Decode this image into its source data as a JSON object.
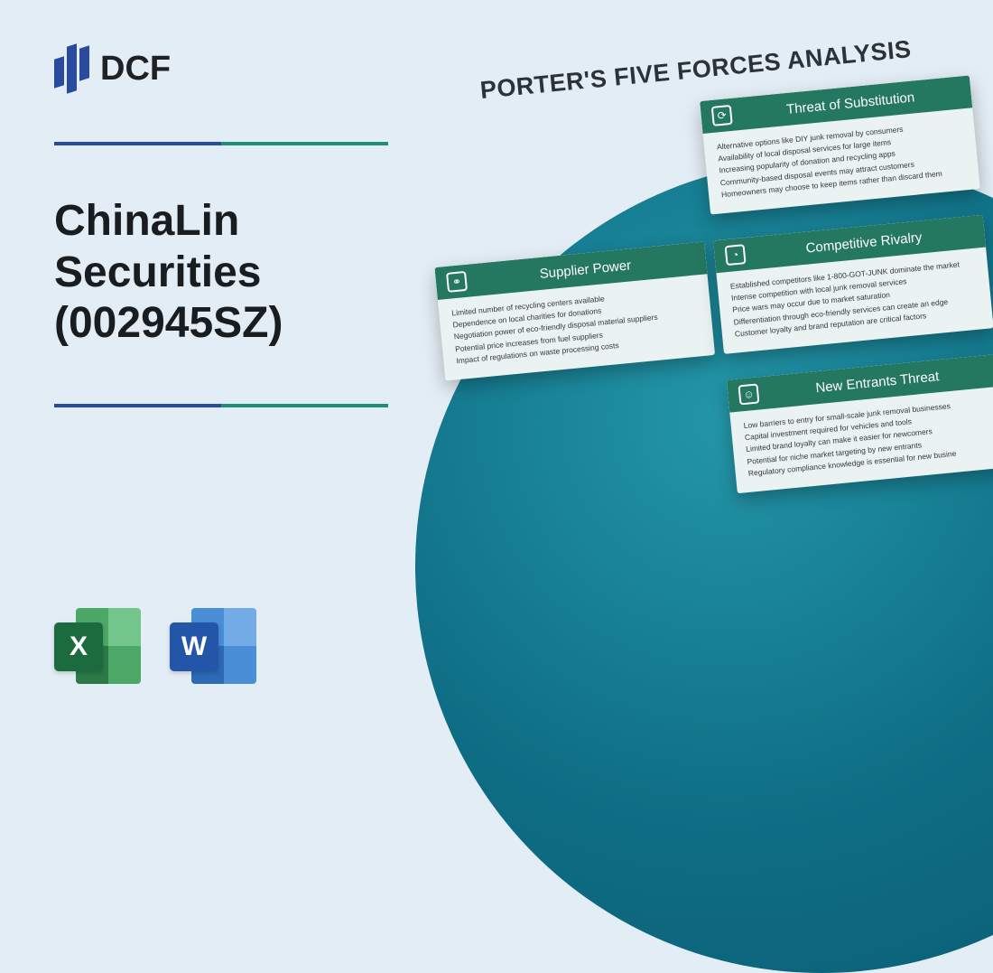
{
  "logo": {
    "text": "DCF"
  },
  "title": "ChinaLin\nSecurities\n(002945SZ)",
  "analysis_heading": "PORTER'S FIVE FORCES ANALYSIS",
  "file_icons": {
    "excel_letter": "X",
    "word_letter": "W"
  },
  "cards": {
    "substitution": {
      "title": "Threat of Substitution",
      "lines": [
        "Alternative options like DIY junk removal by consumers",
        "Availability of local disposal services for large items",
        "Increasing popularity of donation and recycling apps",
        "Community-based disposal events may attract customers",
        "Homeowners may choose to keep items rather than discard them"
      ]
    },
    "rivalry": {
      "title": "Competitive Rivalry",
      "lines": [
        "Established competitors like 1-800-GOT-JUNK dominate the market",
        "Intense competition with local junk removal services",
        "Price wars may occur due to market saturation",
        "Differentiation through eco-friendly services can create an edge",
        "Customer loyalty and brand reputation are critical factors"
      ]
    },
    "entrants": {
      "title": "New Entrants Threat",
      "lines": [
        "Low barriers to entry for small-scale junk removal businesses",
        "Capital investment required for vehicles and tools",
        "Limited brand loyalty can make it easier for newcomers",
        "Potential for niche market targeting by new entrants",
        "Regulatory compliance knowledge is essential for new busine"
      ]
    },
    "supplier": {
      "title": "Supplier Power",
      "lines": [
        "Limited number of recycling centers available",
        "Dependence on local charities for donations",
        "Negotiation power of eco-friendly disposal material suppliers",
        "Potential price increases from fuel suppliers",
        "Impact of regulations on waste processing costs"
      ]
    }
  },
  "colors": {
    "bg": "#e3edf5",
    "circle_inner": "#2396a8",
    "circle_outer": "#0a5b72",
    "card_header": "#24785f",
    "card_body": "#eaf3f1"
  }
}
